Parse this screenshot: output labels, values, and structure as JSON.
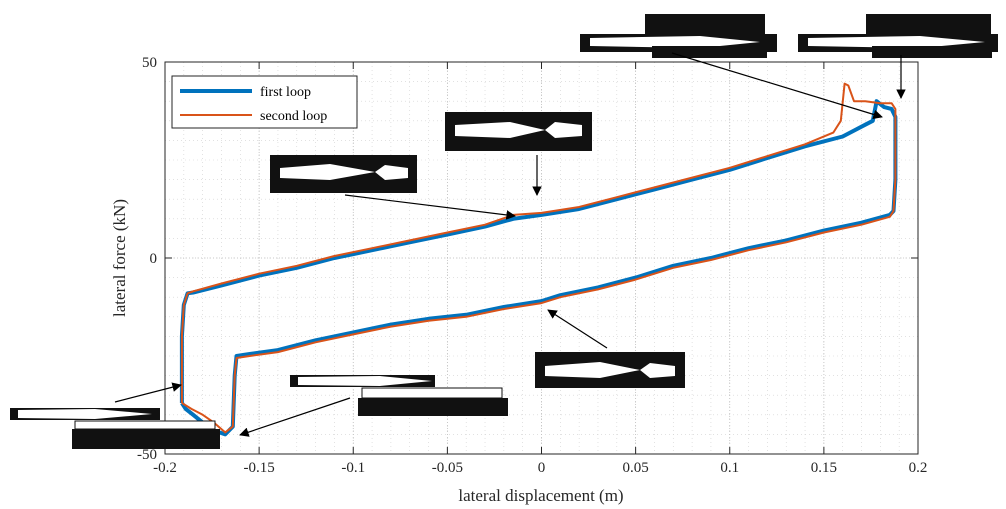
{
  "chart_data": {
    "type": "line",
    "xlabel": "lateral displacement (m)",
    "ylabel": "lateral force (kN)",
    "xlim": [
      -0.2,
      0.2
    ],
    "ylim": [
      -50,
      50
    ],
    "xticks": [
      -0.2,
      -0.15,
      -0.1,
      -0.05,
      0,
      0.05,
      0.1,
      0.15,
      0.2
    ],
    "xtick_labels": [
      "-0.2",
      "-0.15",
      "-0.1",
      "-0.05",
      "0",
      "0.05",
      "0.1",
      "0.15",
      "0.2"
    ],
    "yticks": [
      -50,
      0,
      50
    ],
    "ytick_labels": [
      "-50",
      "0",
      "50"
    ],
    "grid": true,
    "legend_position": "top-left",
    "series": [
      {
        "name": "first loop",
        "color": "#0072BD",
        "points": [
          [
            -0.191,
            -37
          ],
          [
            -0.191,
            -20
          ],
          [
            -0.19,
            -12
          ],
          [
            -0.188,
            -9
          ],
          [
            -0.185,
            -8.8
          ],
          [
            -0.17,
            -7
          ],
          [
            -0.15,
            -4.5
          ],
          [
            -0.13,
            -2.5
          ],
          [
            -0.11,
            0
          ],
          [
            -0.09,
            2
          ],
          [
            -0.07,
            4
          ],
          [
            -0.05,
            6
          ],
          [
            -0.03,
            8
          ],
          [
            -0.015,
            10
          ],
          [
            0,
            11
          ],
          [
            0.02,
            12.5
          ],
          [
            0.04,
            15
          ],
          [
            0.06,
            17.5
          ],
          [
            0.08,
            20
          ],
          [
            0.1,
            22.5
          ],
          [
            0.12,
            25.5
          ],
          [
            0.14,
            28.5
          ],
          [
            0.16,
            31
          ],
          [
            0.172,
            34
          ],
          [
            0.176,
            35
          ],
          [
            0.178,
            40
          ],
          [
            0.182,
            38.5
          ],
          [
            0.186,
            38
          ],
          [
            0.188,
            36
          ],
          [
            0.188,
            20
          ],
          [
            0.187,
            12
          ],
          [
            0.185,
            11
          ],
          [
            0.17,
            9
          ],
          [
            0.15,
            7
          ],
          [
            0.13,
            4.5
          ],
          [
            0.11,
            2.5
          ],
          [
            0.09,
            0
          ],
          [
            0.07,
            -2
          ],
          [
            0.05,
            -5
          ],
          [
            0.03,
            -7.5
          ],
          [
            0.01,
            -9.5
          ],
          [
            0,
            -11
          ],
          [
            -0.02,
            -12.5
          ],
          [
            -0.04,
            -14.5
          ],
          [
            -0.06,
            -15.5
          ],
          [
            -0.08,
            -17
          ],
          [
            -0.1,
            -19
          ],
          [
            -0.12,
            -21
          ],
          [
            -0.14,
            -23.5
          ],
          [
            -0.155,
            -24.5
          ],
          [
            -0.162,
            -25
          ],
          [
            -0.163,
            -30
          ],
          [
            -0.164,
            -43
          ],
          [
            -0.168,
            -45
          ],
          [
            -0.174,
            -44
          ],
          [
            -0.18,
            -42
          ],
          [
            -0.185,
            -40
          ],
          [
            -0.189,
            -38.5
          ],
          [
            -0.191,
            -37
          ]
        ]
      },
      {
        "name": "second loop",
        "color": "#D95319",
        "points": [
          [
            -0.191,
            -37
          ],
          [
            -0.191,
            -20
          ],
          [
            -0.19,
            -12
          ],
          [
            -0.188,
            -9
          ],
          [
            -0.185,
            -8.5
          ],
          [
            -0.17,
            -6.5
          ],
          [
            -0.15,
            -4
          ],
          [
            -0.13,
            -2
          ],
          [
            -0.11,
            0.5
          ],
          [
            -0.09,
            2.5
          ],
          [
            -0.07,
            4.5
          ],
          [
            -0.05,
            6.5
          ],
          [
            -0.03,
            8.5
          ],
          [
            -0.015,
            11
          ],
          [
            0,
            11.5
          ],
          [
            0.02,
            13
          ],
          [
            0.04,
            15.5
          ],
          [
            0.06,
            18
          ],
          [
            0.08,
            20.5
          ],
          [
            0.1,
            23
          ],
          [
            0.12,
            26
          ],
          [
            0.14,
            29
          ],
          [
            0.155,
            32
          ],
          [
            0.159,
            35
          ],
          [
            0.161,
            44.5
          ],
          [
            0.163,
            44
          ],
          [
            0.166,
            40
          ],
          [
            0.172,
            40
          ],
          [
            0.18,
            39.5
          ],
          [
            0.186,
            39.5
          ],
          [
            0.188,
            38
          ],
          [
            0.188,
            20
          ],
          [
            0.187,
            12
          ],
          [
            0.185,
            10.5
          ],
          [
            0.17,
            8.5
          ],
          [
            0.15,
            6.5
          ],
          [
            0.13,
            4
          ],
          [
            0.11,
            2
          ],
          [
            0.09,
            -0.5
          ],
          [
            0.07,
            -2.5
          ],
          [
            0.05,
            -5.5
          ],
          [
            0.03,
            -8
          ],
          [
            0.01,
            -10
          ],
          [
            0,
            -11.5
          ],
          [
            -0.02,
            -13
          ],
          [
            -0.04,
            -15
          ],
          [
            -0.06,
            -16
          ],
          [
            -0.08,
            -17.5
          ],
          [
            -0.1,
            -19.5
          ],
          [
            -0.12,
            -21.5
          ],
          [
            -0.14,
            -24
          ],
          [
            -0.155,
            -25
          ],
          [
            -0.162,
            -25.5
          ],
          [
            -0.163,
            -30
          ],
          [
            -0.164,
            -43
          ],
          [
            -0.168,
            -44.5
          ],
          [
            -0.174,
            -42
          ],
          [
            -0.18,
            -40
          ],
          [
            -0.186,
            -38.5
          ],
          [
            -0.191,
            -37
          ]
        ]
      }
    ]
  }
}
